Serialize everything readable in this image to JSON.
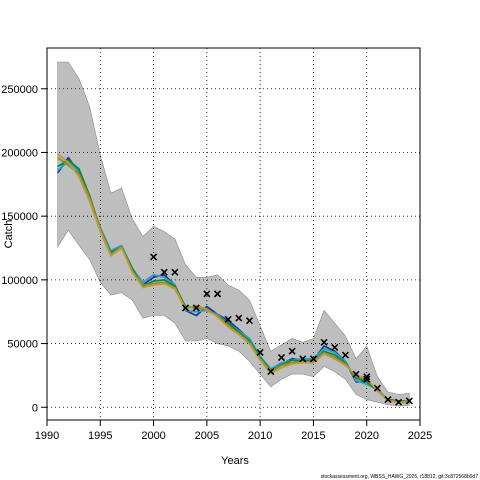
{
  "chart_data": {
    "type": "line",
    "xlabel": "Years",
    "ylabel": "Catch",
    "xlim": [
      1990,
      2025
    ],
    "ylim": [
      -10000,
      282000
    ],
    "x_ticks": [
      1990,
      1995,
      2000,
      2005,
      2010,
      2015,
      2020,
      2025
    ],
    "y_ticks": [
      0,
      50000,
      100000,
      150000,
      200000,
      250000
    ],
    "x_tick_labels": [
      "1990",
      "1995",
      "2000",
      "2005",
      "2010",
      "2015",
      "2020",
      "2025"
    ],
    "y_tick_labels": [
      "0",
      "50000",
      "100000",
      "150000",
      "200000",
      "250000"
    ],
    "grid": true,
    "footer": "stockassessment.org, WBSS_HAWG_2025, r18812, git:3c872568b0d7",
    "colors": {
      "band": "#bebebe",
      "band_edge": "#8c8c8c",
      "grid": "#000000",
      "observed": "#000000",
      "series": [
        "#1c3aa0",
        "#27a6c6",
        "#0a8a3a",
        "#8a8a2a",
        "#c09a3a"
      ]
    },
    "band": {
      "x": [
        1991,
        1992,
        1993,
        1994,
        1995,
        1996,
        1997,
        1998,
        1999,
        2000,
        2001,
        2002,
        2003,
        2004,
        2005,
        2006,
        2007,
        2008,
        2009,
        2010,
        2011,
        2012,
        2013,
        2014,
        2015,
        2016,
        2017,
        2018,
        2019,
        2020,
        2021,
        2022,
        2023,
        2024
      ],
      "upper": [
        271000,
        271000,
        258000,
        236000,
        198000,
        168000,
        172000,
        148000,
        134000,
        142000,
        138000,
        132000,
        112000,
        102000,
        102000,
        104000,
        96000,
        92000,
        84000,
        64000,
        44000,
        49000,
        54000,
        51000,
        54000,
        76000,
        66000,
        56000,
        38000,
        48000,
        24000,
        12000,
        10000,
        11000
      ],
      "lower": [
        126000,
        139000,
        127000,
        116000,
        98000,
        88000,
        90000,
        84000,
        70000,
        72000,
        72000,
        66000,
        52000,
        52000,
        54000,
        50000,
        48000,
        44000,
        36000,
        26000,
        16000,
        22000,
        26000,
        26000,
        24000,
        32000,
        28000,
        22000,
        10000,
        6000,
        4000,
        2000,
        1000,
        1500
      ]
    },
    "series": [
      {
        "values": [
          184000,
          196000,
          184000,
          166000,
          139000,
          122000,
          126000,
          108000,
          96000,
          102000,
          104000,
          96000,
          76000,
          72000,
          79000,
          73000,
          68000,
          61000,
          53000,
          40000,
          29000,
          34000,
          38000,
          37000,
          37000,
          48000,
          44000,
          36000,
          20000,
          20000,
          13000,
          6000,
          5000,
          5000
        ]
      },
      {
        "values": [
          186000,
          193000,
          185000,
          164000,
          141000,
          123000,
          127000,
          109000,
          98000,
          104000,
          102000,
          96000,
          76000,
          75000,
          76000,
          73000,
          66000,
          60000,
          54000,
          40000,
          30000,
          35000,
          37000,
          38000,
          38000,
          46000,
          43000,
          36000,
          21000,
          18000,
          14000,
          6000,
          5000,
          5000
        ]
      },
      {
        "values": [
          189000,
          194000,
          187000,
          166000,
          140000,
          121000,
          126000,
          109000,
          95000,
          99000,
          100000,
          95000,
          79000,
          78000,
          77000,
          72000,
          66000,
          59000,
          52000,
          39000,
          29000,
          33000,
          37000,
          36000,
          36000,
          44000,
          41000,
          35000,
          23000,
          20000,
          13000,
          6000,
          5000,
          4000
        ]
      },
      {
        "values": [
          196000,
          190000,
          183000,
          165000,
          140000,
          120000,
          126000,
          107000,
          96000,
          97000,
          98000,
          94000,
          78000,
          79000,
          76000,
          72000,
          64000,
          58000,
          51000,
          38000,
          28000,
          33000,
          35000,
          36000,
          36000,
          43000,
          39000,
          34000,
          24000,
          22000,
          13000,
          6000,
          4000,
          4000
        ]
      },
      {
        "values": [
          199000,
          192000,
          181000,
          162000,
          138000,
          119000,
          125000,
          106000,
          94000,
          96000,
          97000,
          93000,
          77000,
          80000,
          77000,
          71000,
          63000,
          57000,
          50000,
          37000,
          27000,
          31000,
          34000,
          35000,
          35000,
          42000,
          38000,
          33000,
          25000,
          23000,
          13000,
          5000,
          4000,
          4000
        ]
      }
    ],
    "observed": {
      "x": [
        2000,
        2001,
        2002,
        2003,
        2004,
        2005,
        2006,
        2007,
        2008,
        2009,
        2010,
        2011,
        2012,
        2013,
        2014,
        2015,
        2016,
        2017,
        2018,
        2019,
        2020,
        2020,
        2021,
        2022,
        2023,
        2024
      ],
      "y": [
        118000,
        106000,
        106000,
        78000,
        78000,
        89000,
        89000,
        69000,
        70000,
        68000,
        43000,
        28000,
        39000,
        44000,
        38000,
        38000,
        51000,
        47000,
        41000,
        26000,
        24000,
        22000,
        15000,
        6000,
        4000,
        5000
      ]
    }
  }
}
